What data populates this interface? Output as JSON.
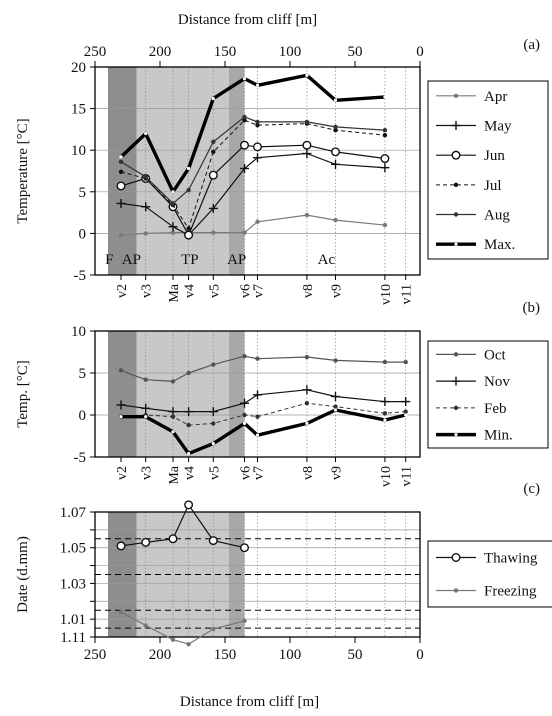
{
  "figure": {
    "top_axis_title": "Distance from cliff [m]",
    "bottom_axis_title": "Distance from cliff [m]",
    "x_ticks": [
      250,
      200,
      150,
      100,
      50,
      0
    ],
    "x_range": [
      250,
      0
    ],
    "zones": [
      {
        "label": "F",
        "x_from": 240,
        "x_to": 230,
        "shade": "#8e8e8e"
      },
      {
        "label": "AP",
        "x_from": 230,
        "x_to": 218,
        "shade": "#8e8e8e"
      },
      {
        "label": "TP",
        "x_from": 218,
        "x_to": 147,
        "shade": "#c8c8c8"
      },
      {
        "label": "AP",
        "x_from": 147,
        "x_to": 135,
        "shade": "#a8a8a8"
      }
    ],
    "zone_labels": [
      {
        "text": "F",
        "x": 239
      },
      {
        "text": "AP",
        "x": 222
      },
      {
        "text": "TP",
        "x": 177
      },
      {
        "text": "AP",
        "x": 141
      },
      {
        "text": "Ac",
        "x": 72
      }
    ],
    "stations": [
      {
        "label": "v2",
        "x": 230
      },
      {
        "label": "v3",
        "x": 211
      },
      {
        "label": "Ma",
        "x": 190
      },
      {
        "label": "v4",
        "x": 178
      },
      {
        "label": "v5",
        "x": 159
      },
      {
        "label": "v6",
        "x": 135
      },
      {
        "label": "v7",
        "x": 125
      },
      {
        "label": "v8",
        "x": 87
      },
      {
        "label": "v9",
        "x": 65
      },
      {
        "label": "v10",
        "x": 27
      },
      {
        "label": "v11",
        "x": 11
      }
    ]
  },
  "chart_data": [
    {
      "type": "line",
      "panel_label": "(a)",
      "ylabel": "Temperature [°C]",
      "ylim": [
        -5,
        20
      ],
      "yticks": [
        -5,
        0,
        5,
        10,
        15,
        20
      ],
      "grid": true,
      "legend_placement": "right",
      "series": [
        {
          "name": "Apr",
          "color": "#7a7a7a",
          "width": 1.2,
          "dash": "",
          "marker": "dot",
          "points": [
            [
              230,
              -0.2
            ],
            [
              211,
              0.0
            ],
            [
              190,
              0.1
            ],
            [
              178,
              0.1
            ],
            [
              159,
              0.1
            ],
            [
              135,
              0.1
            ],
            [
              125,
              1.4
            ],
            [
              87,
              2.2
            ],
            [
              65,
              1.6
            ],
            [
              27,
              1.0
            ]
          ]
        },
        {
          "name": "May",
          "color": "#111111",
          "width": 1.2,
          "dash": "",
          "marker": "plus",
          "points": [
            [
              230,
              3.6
            ],
            [
              211,
              3.2
            ],
            [
              190,
              0.8
            ],
            [
              178,
              -0.2
            ],
            [
              159,
              3.0
            ],
            [
              135,
              7.8
            ],
            [
              125,
              9.1
            ],
            [
              87,
              9.6
            ],
            [
              65,
              8.3
            ],
            [
              27,
              7.9
            ]
          ]
        },
        {
          "name": "Jun",
          "color": "#111111",
          "width": 1.2,
          "dash": "",
          "marker": "circle",
          "points": [
            [
              230,
              5.7
            ],
            [
              211,
              6.6
            ],
            [
              190,
              3.2
            ],
            [
              178,
              -0.2
            ],
            [
              159,
              7.0
            ],
            [
              135,
              10.6
            ],
            [
              125,
              10.4
            ],
            [
              87,
              10.6
            ],
            [
              65,
              9.8
            ],
            [
              27,
              9.0
            ]
          ]
        },
        {
          "name": "Jul",
          "color": "#111111",
          "width": 1.0,
          "dash": "4,3",
          "marker": "dot",
          "points": [
            [
              230,
              7.4
            ],
            [
              211,
              6.6
            ],
            [
              190,
              3.4
            ],
            [
              178,
              0.6
            ],
            [
              159,
              9.8
            ],
            [
              135,
              13.6
            ],
            [
              125,
              13.0
            ],
            [
              87,
              13.2
            ],
            [
              65,
              12.4
            ],
            [
              27,
              11.8
            ]
          ]
        },
        {
          "name": "Aug",
          "color": "#333333",
          "width": 1.2,
          "dash": "",
          "marker": "dot",
          "points": [
            [
              230,
              8.6
            ],
            [
              211,
              6.8
            ],
            [
              190,
              3.6
            ],
            [
              178,
              5.2
            ],
            [
              159,
              11.0
            ],
            [
              135,
              14.0
            ],
            [
              125,
              13.4
            ],
            [
              87,
              13.4
            ],
            [
              65,
              12.8
            ],
            [
              27,
              12.4
            ]
          ]
        },
        {
          "name": "Max.",
          "color": "#000000",
          "width": 3.4,
          "dash": "",
          "marker": "dot-white",
          "points": [
            [
              230,
              9.2
            ],
            [
              211,
              12.0
            ],
            [
              190,
              5.0
            ],
            [
              178,
              7.8
            ],
            [
              159,
              16.2
            ],
            [
              135,
              18.6
            ],
            [
              125,
              17.8
            ],
            [
              87,
              19.0
            ],
            [
              65,
              16.0
            ],
            [
              27,
              16.4
            ]
          ]
        }
      ]
    },
    {
      "type": "line",
      "panel_label": "(b)",
      "ylabel": "Temp. [°C]",
      "ylim": [
        -5,
        10
      ],
      "yticks": [
        -5,
        0,
        5,
        10
      ],
      "grid": true,
      "legend_placement": "right",
      "series": [
        {
          "name": "Oct",
          "color": "#555555",
          "width": 1.2,
          "dash": "",
          "marker": "dot",
          "points": [
            [
              230,
              5.3
            ],
            [
              211,
              4.2
            ],
            [
              190,
              4.0
            ],
            [
              178,
              5.0
            ],
            [
              159,
              6.0
            ],
            [
              135,
              7.0
            ],
            [
              125,
              6.7
            ],
            [
              87,
              6.9
            ],
            [
              65,
              6.5
            ],
            [
              27,
              6.3
            ],
            [
              11,
              6.3
            ]
          ]
        },
        {
          "name": "Nov",
          "color": "#111111",
          "width": 1.2,
          "dash": "",
          "marker": "plus",
          "points": [
            [
              230,
              1.2
            ],
            [
              211,
              0.8
            ],
            [
              190,
              0.4
            ],
            [
              178,
              0.4
            ],
            [
              159,
              0.4
            ],
            [
              135,
              1.4
            ],
            [
              125,
              2.4
            ],
            [
              87,
              3.0
            ],
            [
              65,
              2.2
            ],
            [
              27,
              1.6
            ],
            [
              11,
              1.6
            ]
          ]
        },
        {
          "name": "Feb",
          "color": "#333333",
          "width": 1.0,
          "dash": "4,3",
          "marker": "dot",
          "points": [
            [
              230,
              -0.2
            ],
            [
              211,
              0.0
            ],
            [
              190,
              -0.2
            ],
            [
              178,
              -1.2
            ],
            [
              159,
              -1.0
            ],
            [
              135,
              0.0
            ],
            [
              125,
              -0.2
            ],
            [
              87,
              1.4
            ],
            [
              65,
              1.0
            ],
            [
              27,
              0.2
            ],
            [
              11,
              0.4
            ]
          ]
        },
        {
          "name": "Min.",
          "color": "#000000",
          "width": 3.4,
          "dash": "",
          "marker": "dot-white",
          "points": [
            [
              230,
              -0.2
            ],
            [
              211,
              -0.2
            ],
            [
              190,
              -2.0
            ],
            [
              178,
              -4.6
            ],
            [
              159,
              -3.4
            ],
            [
              135,
              -1.0
            ],
            [
              125,
              -2.4
            ],
            [
              87,
              -1.0
            ],
            [
              65,
              0.6
            ],
            [
              27,
              -0.6
            ],
            [
              11,
              0.0
            ]
          ]
        }
      ]
    },
    {
      "type": "line",
      "panel_label": "(c)",
      "ylabel": "Date (d.mm)",
      "ylim": [
        0,
        7
      ],
      "yticks": [
        0,
        1,
        2,
        3,
        4,
        5,
        6,
        7
      ],
      "ytick_labels": [
        "1.11",
        "1.01",
        "",
        "1.03",
        "",
        "1.05",
        "",
        "1.07"
      ],
      "dashed_lines": [
        0.5,
        1.5,
        3.5,
        5.5
      ],
      "grid": true,
      "legend_placement": "right",
      "series": [
        {
          "name": "Thawing",
          "color": "#111111",
          "width": 1.2,
          "dash": "",
          "marker": "circle",
          "points": [
            [
              230,
              5.1
            ],
            [
              211,
              5.3
            ],
            [
              190,
              5.5
            ],
            [
              178,
              7.4
            ],
            [
              159,
              5.4
            ],
            [
              135,
              5.0
            ]
          ]
        },
        {
          "name": "Freezing",
          "color": "#777777",
          "width": 1.2,
          "dash": "",
          "marker": "dot",
          "points": [
            [
              230,
              1.4
            ],
            [
              211,
              0.65
            ],
            [
              190,
              -0.15
            ],
            [
              178,
              -0.4
            ],
            [
              159,
              0.45
            ],
            [
              135,
              0.9
            ]
          ]
        }
      ]
    }
  ]
}
